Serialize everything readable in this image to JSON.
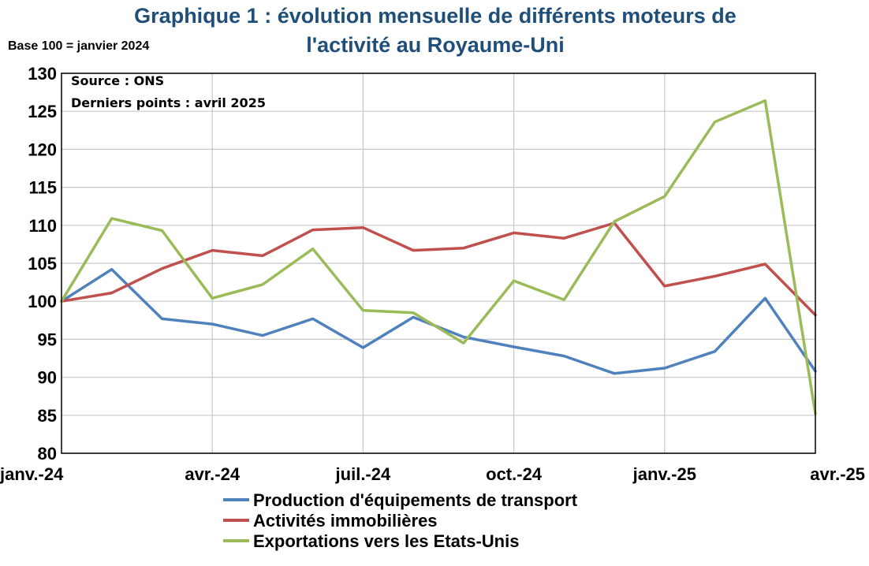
{
  "chart_data": {
    "type": "line",
    "title_line1": "Graphique 1 : évolution mensuelle de différents moteurs de",
    "title_line2": "l'activité au Royaume-Uni",
    "subtitle": "Base 100 = janvier 2024",
    "annotation_source": "Source : ONS",
    "annotation_last": "Derniers points : avril 2025",
    "xlabel": "",
    "ylabel": "",
    "ylim": [
      80,
      130
    ],
    "yticks": [
      80,
      85,
      90,
      95,
      100,
      105,
      110,
      115,
      120,
      125,
      130
    ],
    "x": [
      "2024-01",
      "2024-02",
      "2024-03",
      "2024-04",
      "2024-05",
      "2024-06",
      "2024-07",
      "2024-08",
      "2024-09",
      "2024-10",
      "2024-11",
      "2024-12",
      "2025-01",
      "2025-02",
      "2025-03",
      "2025-04"
    ],
    "xtick_labels": [
      {
        "index": 0,
        "label": "janv.-24"
      },
      {
        "index": 3,
        "label": "avr.-24"
      },
      {
        "index": 6,
        "label": "juil.-24"
      },
      {
        "index": 9,
        "label": "oct.-24"
      },
      {
        "index": 12,
        "label": "janv.-25"
      },
      {
        "index": 15,
        "label": "avr.-25"
      }
    ],
    "grid": "vertical at labelled months, horizontal at each y tick",
    "legend_position": "bottom",
    "series": [
      {
        "name": "Production d'équipements de transport",
        "color": "#4F81BD",
        "values": [
          100,
          104.2,
          97.7,
          97.0,
          95.5,
          97.7,
          93.9,
          97.9,
          95.3,
          94.0,
          92.8,
          90.5,
          91.2,
          93.4,
          100.4,
          90.8
        ]
      },
      {
        "name": "Activités immobilières",
        "color": "#C0504D",
        "values": [
          100,
          101.1,
          104.3,
          106.7,
          106.0,
          109.4,
          109.7,
          106.7,
          107.0,
          109.0,
          108.3,
          110.3,
          102.0,
          103.3,
          104.9,
          98.2
        ]
      },
      {
        "name": "Exportations vers les Etats-Unis",
        "color": "#9BBB59",
        "values": [
          100,
          110.9,
          109.3,
          100.4,
          102.2,
          106.9,
          98.8,
          98.5,
          94.5,
          102.7,
          100.2,
          110.5,
          113.8,
          123.6,
          126.4,
          85.2
        ]
      }
    ]
  }
}
